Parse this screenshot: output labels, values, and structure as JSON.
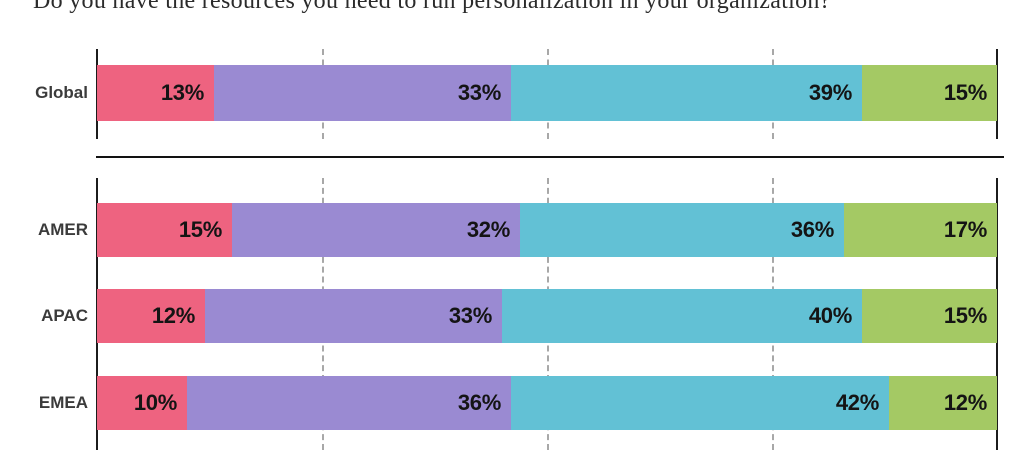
{
  "title": "Do you have the resources you need to run personalization in your organization?",
  "colors": {
    "segment_pink": "#ee6380",
    "segment_purple": "#9a8ad2",
    "segment_teal": "#62c1d5",
    "segment_green": "#a4c964",
    "axis": "#1c1c1c",
    "gridline": "#a8a8a8",
    "value_label": "#141414",
    "region_label": "#3b3b3b"
  },
  "chart_data": {
    "type": "bar",
    "orientation": "horizontal",
    "stacked": true,
    "unit": "%",
    "title": "Do you have the resources you need to run personalization in your organization?",
    "categories": [
      "Global",
      "AMER",
      "APAC",
      "EMEA"
    ],
    "row_groups": [
      [
        "Global"
      ],
      [
        "AMER",
        "APAC",
        "EMEA"
      ]
    ],
    "segment_colors": [
      "#ee6380",
      "#9a8ad2",
      "#62c1d5",
      "#a4c964"
    ],
    "rows": [
      {
        "label": "Global",
        "values": [
          13,
          33,
          39,
          15
        ]
      },
      {
        "label": "AMER",
        "values": [
          15,
          32,
          36,
          17
        ]
      },
      {
        "label": "APAC",
        "values": [
          12,
          33,
          40,
          15
        ]
      },
      {
        "label": "EMEA",
        "values": [
          10,
          36,
          42,
          12
        ]
      }
    ],
    "series": [
      {
        "name": "segment-1-pink",
        "color": "#ee6380",
        "values": [
          13,
          15,
          12,
          10
        ]
      },
      {
        "name": "segment-2-purple",
        "color": "#9a8ad2",
        "values": [
          33,
          32,
          33,
          36
        ]
      },
      {
        "name": "segment-3-teal",
        "color": "#62c1d5",
        "values": [
          39,
          36,
          40,
          42
        ]
      },
      {
        "name": "segment-4-green",
        "color": "#a4c964",
        "values": [
          15,
          17,
          15,
          12
        ]
      }
    ],
    "xlim": [
      0,
      100
    ],
    "gridlines_percent": [
      25,
      50,
      75
    ],
    "legend": "none",
    "value_labels": "inside-right"
  }
}
